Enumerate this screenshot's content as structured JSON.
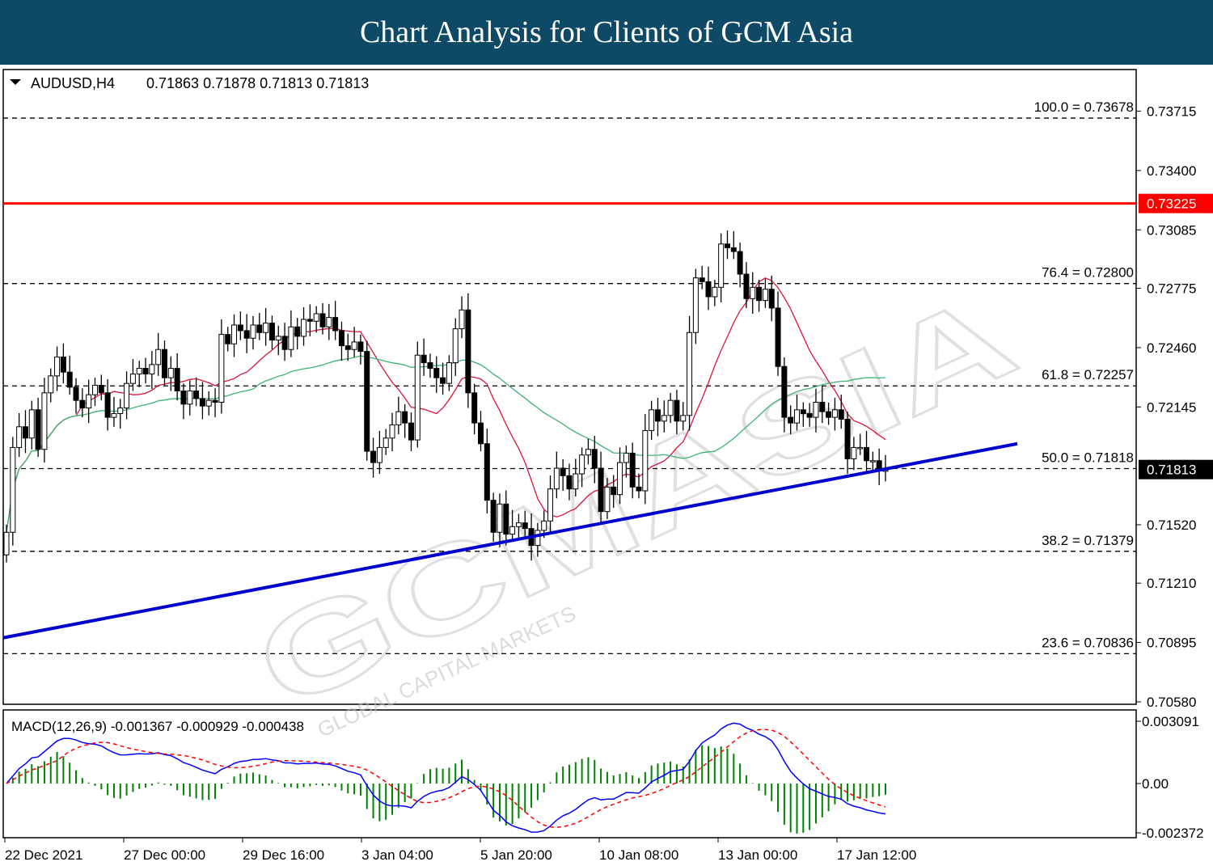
{
  "banner": {
    "title": "Chart Analysis for Clients of GCM Asia"
  },
  "chart_data": [
    {
      "type": "candlestick",
      "symbol_header": "AUDUSD,H4",
      "ohlc_header": "0.71863 0.71878 0.71813 0.71813",
      "current_price": "0.71813",
      "resistance_level": "0.73225",
      "ylim": [
        0.7058,
        0.7385
      ],
      "y_ticks": [
        "0.73715",
        "0.73400",
        "0.73085",
        "0.72775",
        "0.72460",
        "0.72145",
        "0.71520",
        "0.71210",
        "0.70895",
        "0.70580"
      ],
      "x_tick_labels": [
        "22 Dec 2021",
        "27 Dec 00:00",
        "29 Dec 16:00",
        "3 Jan 04:00",
        "5 Jan 20:00",
        "10 Jan 08:00",
        "13 Jan 00:00",
        "17 Jan 12:00"
      ],
      "fibonacci_levels": [
        {
          "label": "100.0 = 0.73678",
          "price": 0.73678
        },
        {
          "label": "76.4 = 0.72800",
          "price": 0.728
        },
        {
          "label": "61.8 = 0.72257",
          "price": 0.72257
        },
        {
          "label": "50.0 = 0.71818",
          "price": 0.71818
        },
        {
          "label": "38.2 = 0.71379",
          "price": 0.71379
        },
        {
          "label": "23.6 = 0.70836",
          "price": 0.70836
        }
      ],
      "trendline": {
        "start_price": 0.7092,
        "end_price": 0.7195
      },
      "colors": {
        "resistance": "#ff0000",
        "trendline": "#0000cc",
        "fast_ma": "#dc143c",
        "slow_ma": "#3cb371",
        "candles": "#000000"
      },
      "candles_close": [
        0.7148,
        0.7193,
        0.7204,
        0.7198,
        0.7213,
        0.7192,
        0.7222,
        0.7231,
        0.7241,
        0.7233,
        0.7225,
        0.7218,
        0.7214,
        0.7221,
        0.7226,
        0.7222,
        0.7209,
        0.7211,
        0.7214,
        0.7227,
        0.7232,
        0.7235,
        0.7232,
        0.7237,
        0.7245,
        0.723,
        0.7235,
        0.7223,
        0.7216,
        0.7223,
        0.7219,
        0.7215,
        0.7218,
        0.7217,
        0.7253,
        0.7248,
        0.7258,
        0.7255,
        0.7251,
        0.7258,
        0.7254,
        0.7259,
        0.725,
        0.7252,
        0.7245,
        0.7257,
        0.7252,
        0.7261,
        0.726,
        0.7264,
        0.7257,
        0.7262,
        0.7255,
        0.7247,
        0.7245,
        0.7249,
        0.7244,
        0.7191,
        0.7185,
        0.7193,
        0.7198,
        0.7205,
        0.7212,
        0.7206,
        0.7197,
        0.7242,
        0.7238,
        0.7235,
        0.723,
        0.7227,
        0.7238,
        0.7256,
        0.7266,
        0.7222,
        0.7206,
        0.7195,
        0.7165,
        0.7148,
        0.7163,
        0.7147,
        0.7151,
        0.7153,
        0.715,
        0.7141,
        0.7149,
        0.7154,
        0.7171,
        0.7182,
        0.7178,
        0.7171,
        0.7179,
        0.7189,
        0.7192,
        0.7182,
        0.7159,
        0.7172,
        0.7168,
        0.7185,
        0.719,
        0.7172,
        0.717,
        0.7202,
        0.7213,
        0.7207,
        0.721,
        0.7218,
        0.7207,
        0.721,
        0.7254,
        0.7283,
        0.7281,
        0.7273,
        0.7278,
        0.7301,
        0.7299,
        0.7297,
        0.7285,
        0.7272,
        0.7278,
        0.7271,
        0.7277,
        0.7267,
        0.7236,
        0.7209,
        0.7206,
        0.7213,
        0.7211,
        0.7209,
        0.7217,
        0.7212,
        0.7209,
        0.7213,
        0.7208,
        0.7187,
        0.7193,
        0.7193,
        0.7186,
        0.7186,
        0.7181,
        0.7181
      ],
      "panel": {
        "type": "macd",
        "header": "MACD(12,26,9) -0.001367 -0.000929 -0.000438",
        "y_ticks": [
          "0.003091",
          "0.00",
          "-0.002372"
        ],
        "macd_color": "#0000ff",
        "signal_color": "#ff0000",
        "histogram_color": "#008000"
      }
    }
  ],
  "watermark": {
    "text": "GCMASIA",
    "sub": "GLOBAL CAPITAL MARKETS"
  }
}
